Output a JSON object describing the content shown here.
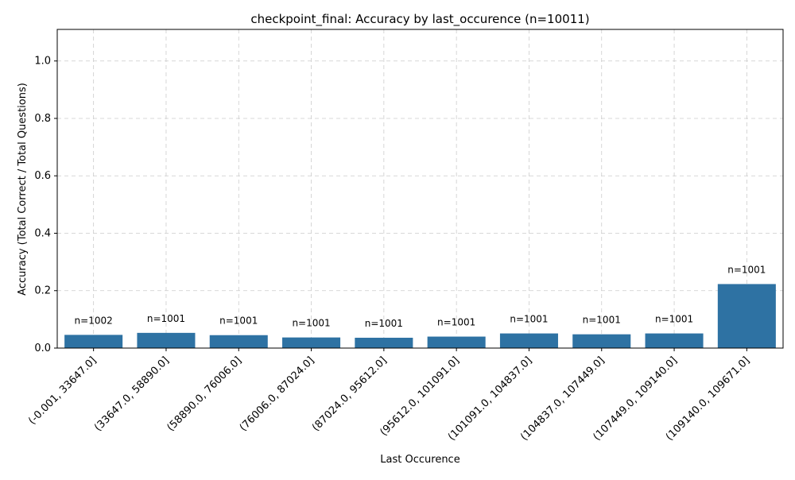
{
  "chart_data": {
    "type": "bar",
    "title": "checkpoint_final: Accuracy by last_occurence (n=10011)",
    "xlabel": "Last Occurence",
    "ylabel": "Accuracy (Total Correct / Total Questions)",
    "ylim": [
      0,
      1.11
    ],
    "yticks": [
      0.0,
      0.2,
      0.4,
      0.6,
      0.8,
      1.0
    ],
    "ytick_labels": [
      "0.0",
      "0.2",
      "0.4",
      "0.6",
      "0.8",
      "1.0"
    ],
    "grid": true,
    "bar_color": "#2e72a3",
    "categories": [
      "(-0.001, 33647.0]",
      "(33647.0, 58890.0]",
      "(58890.0, 76006.0]",
      "(76006.0, 87024.0]",
      "(87024.0, 95612.0]",
      "(95612.0, 101091.0]",
      "(101091.0, 104837.0]",
      "(104837.0, 107449.0]",
      "(107449.0, 109140.0]",
      "(109140.0, 109671.0]"
    ],
    "values": [
      0.046,
      0.053,
      0.045,
      0.037,
      0.036,
      0.04,
      0.051,
      0.048,
      0.051,
      0.223
    ],
    "annotations": [
      "n=1002",
      "n=1001",
      "n=1001",
      "n=1001",
      "n=1001",
      "n=1001",
      "n=1001",
      "n=1001",
      "n=1001",
      "n=1001"
    ]
  }
}
